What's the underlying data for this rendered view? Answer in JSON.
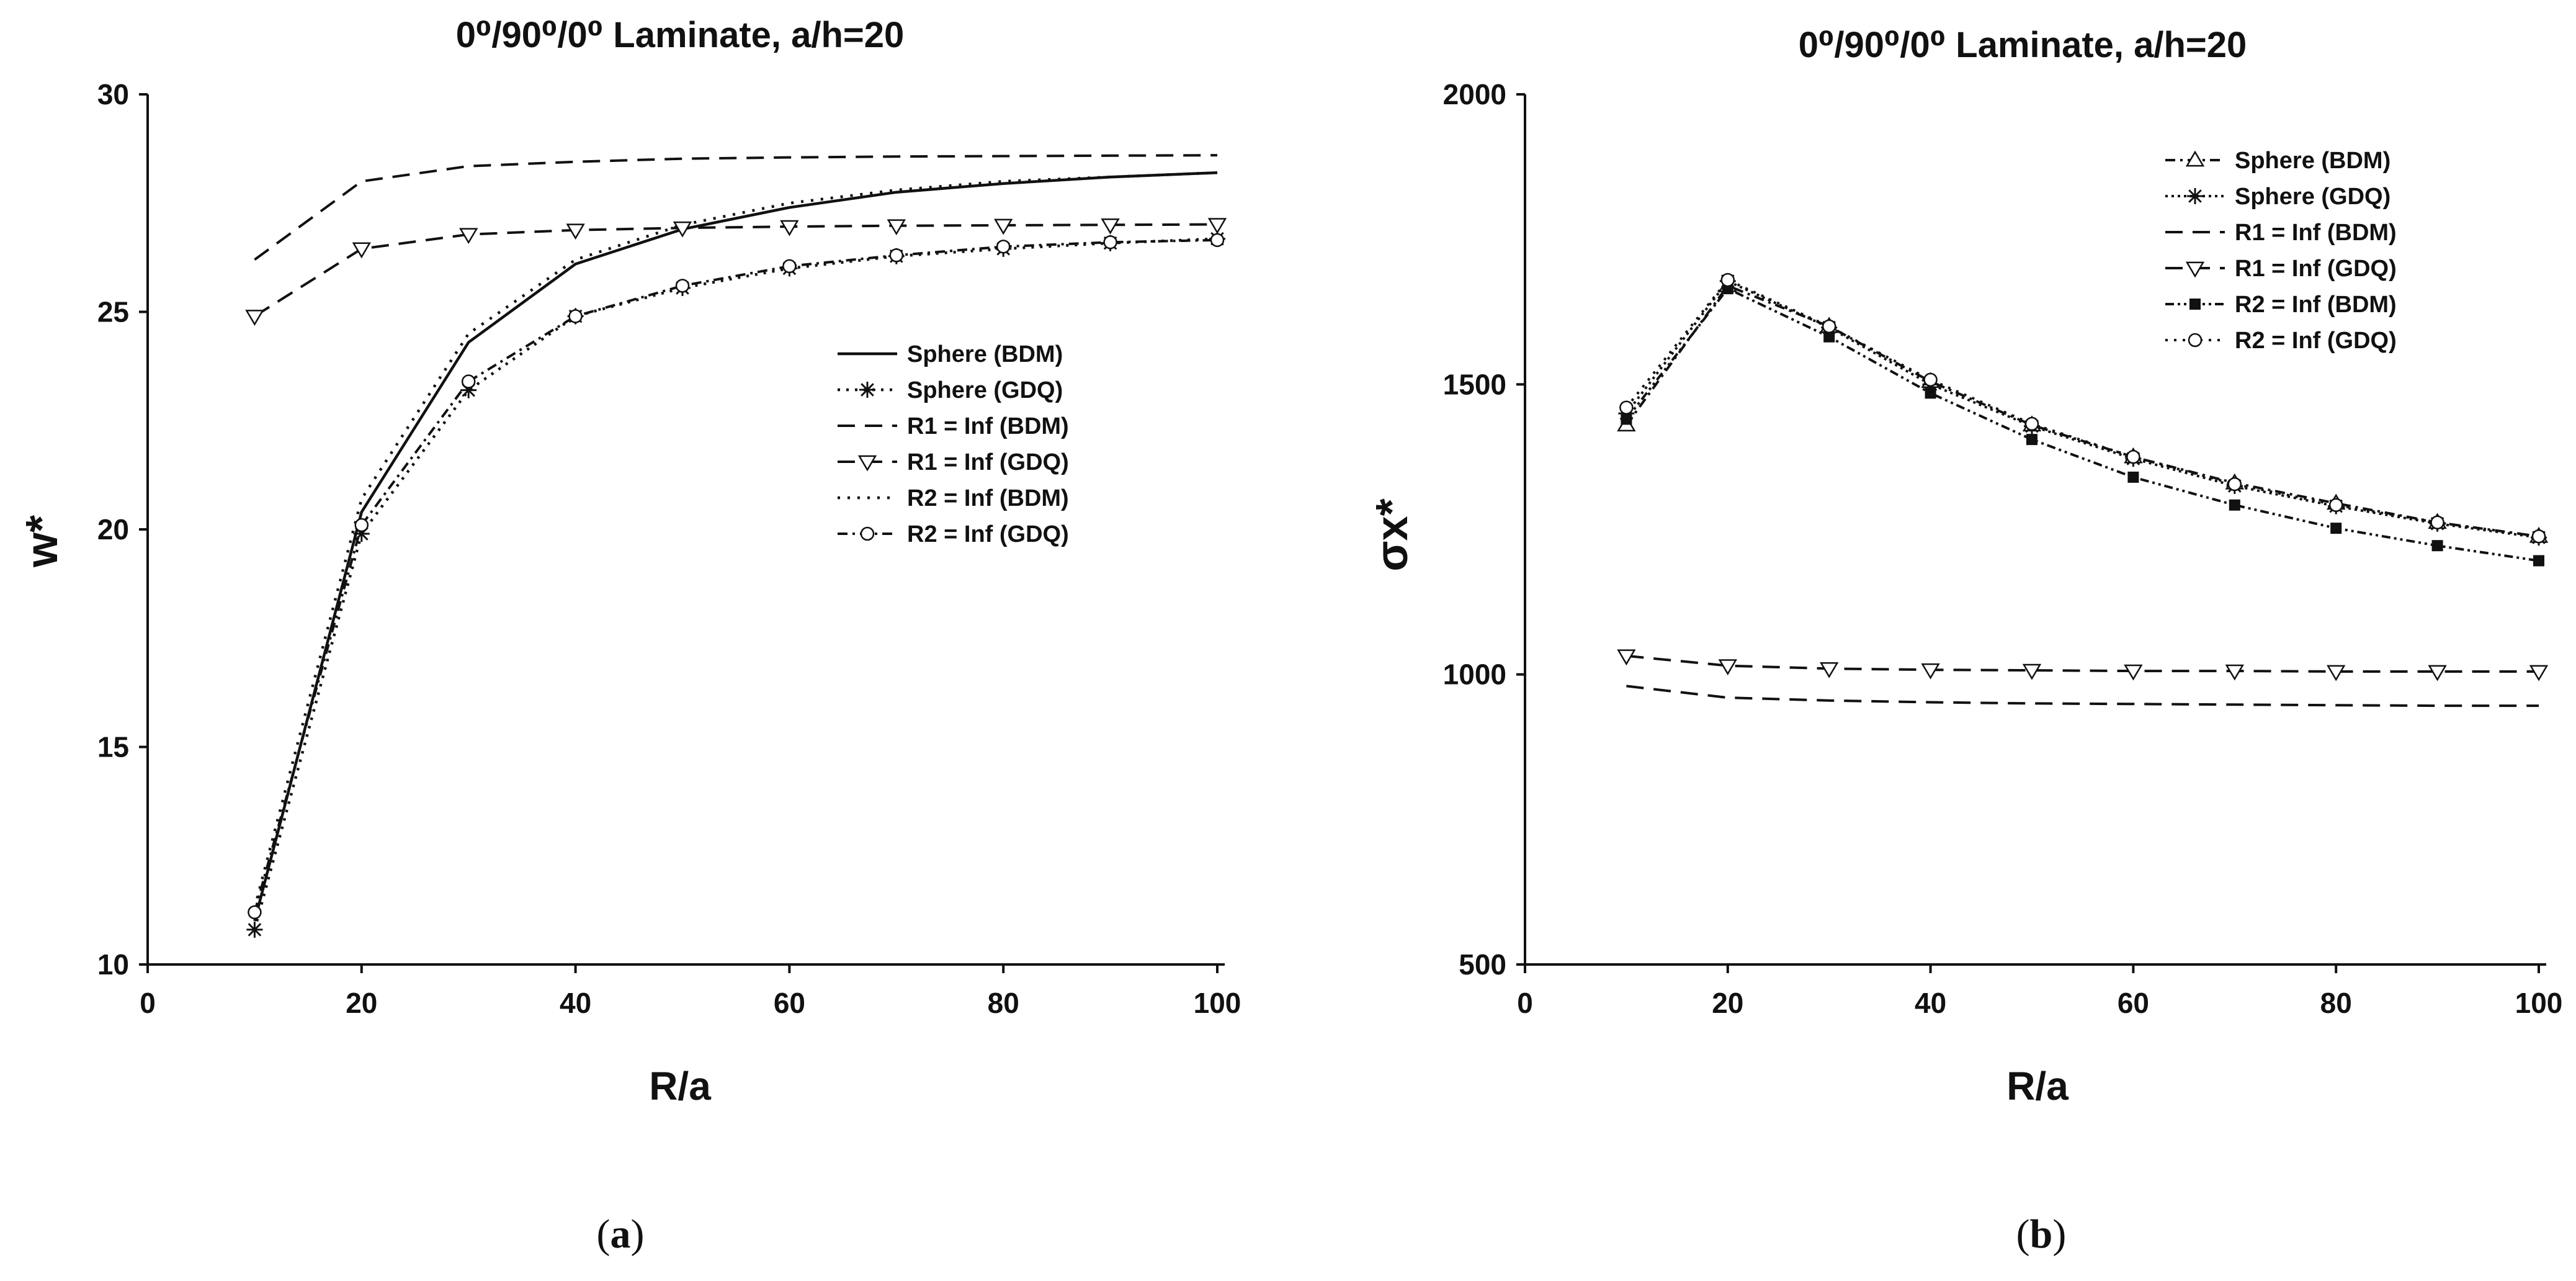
{
  "chart_data": [
    {
      "panel_label": "(a)",
      "type": "line",
      "title": "0⁰/90⁰/0⁰ Laminate, a/h=20",
      "xlabel": "R/a",
      "ylabel": "w*",
      "xlim": [
        0,
        100
      ],
      "ylim": [
        10,
        30
      ],
      "xticks": [
        "0",
        "20",
        "40",
        "60",
        "80",
        "100"
      ],
      "yticks": [
        "10",
        "15",
        "20",
        "25",
        "30"
      ],
      "legend_position": "middle-right",
      "x": [
        10,
        20,
        30,
        40,
        50,
        60,
        70,
        80,
        90,
        100
      ],
      "series": [
        {
          "name": "Sphere (BDM)",
          "values": [
            11.0,
            20.4,
            24.3,
            26.1,
            26.9,
            27.4,
            27.75,
            27.95,
            28.1,
            28.2
          ]
        },
        {
          "name": "Sphere (GDQ)",
          "values": [
            10.8,
            19.9,
            23.2,
            24.9,
            25.55,
            26.0,
            26.28,
            26.45,
            26.58,
            26.68
          ]
        },
        {
          "name": "R1 = Inf (BDM)",
          "values": [
            26.2,
            28.0,
            28.35,
            28.45,
            28.52,
            28.55,
            28.57,
            28.58,
            28.59,
            28.6
          ]
        },
        {
          "name": "R1 = Inf (GDQ)",
          "values": [
            24.9,
            26.45,
            26.78,
            26.88,
            26.93,
            26.96,
            26.98,
            26.99,
            27.0,
            27.01
          ]
        },
        {
          "name": "R2 = Inf (BDM)",
          "values": [
            11.3,
            20.7,
            24.5,
            26.2,
            27.0,
            27.5,
            27.8,
            28.0,
            28.1,
            28.2
          ]
        },
        {
          "name": "R2 = Inf (GDQ)",
          "values": [
            11.2,
            20.1,
            23.4,
            24.9,
            25.6,
            26.05,
            26.3,
            26.5,
            26.6,
            26.65
          ]
        }
      ]
    },
    {
      "panel_label": "(b)",
      "type": "line",
      "title": "0⁰/90⁰/0⁰ Laminate, a/h=20",
      "xlabel": "R/a",
      "ylabel": "σx*",
      "xlim": [
        0,
        100
      ],
      "ylim": [
        500,
        2000
      ],
      "xticks": [
        "0",
        "20",
        "40",
        "60",
        "80",
        "100"
      ],
      "yticks": [
        "500",
        "1000",
        "1500",
        "2000"
      ],
      "legend_position": "top-right",
      "x": [
        10,
        20,
        30,
        40,
        50,
        60,
        70,
        80,
        90,
        100
      ],
      "series": [
        {
          "name": "Sphere (BDM)",
          "values": [
            1430,
            1670,
            1600,
            1505,
            1430,
            1375,
            1330,
            1295,
            1262,
            1238
          ]
        },
        {
          "name": "Sphere (GDQ)",
          "values": [
            1450,
            1678,
            1598,
            1500,
            1428,
            1372,
            1325,
            1290,
            1260,
            1236
          ]
        },
        {
          "name": "R1 = Inf (BDM)",
          "values": [
            980,
            960,
            955,
            952,
            950,
            949,
            948,
            947,
            946,
            946
          ]
        },
        {
          "name": "R1 = Inf (GDQ)",
          "values": [
            1032,
            1015,
            1010,
            1008,
            1007,
            1006,
            1006,
            1005,
            1005,
            1005
          ]
        },
        {
          "name": "R2 = Inf (BDM)",
          "values": [
            1440,
            1665,
            1582,
            1485,
            1405,
            1340,
            1292,
            1252,
            1222,
            1196
          ]
        },
        {
          "name": "R2 = Inf (GDQ)",
          "values": [
            1460,
            1680,
            1600,
            1508,
            1432,
            1375,
            1328,
            1292,
            1262,
            1238
          ]
        }
      ]
    }
  ]
}
